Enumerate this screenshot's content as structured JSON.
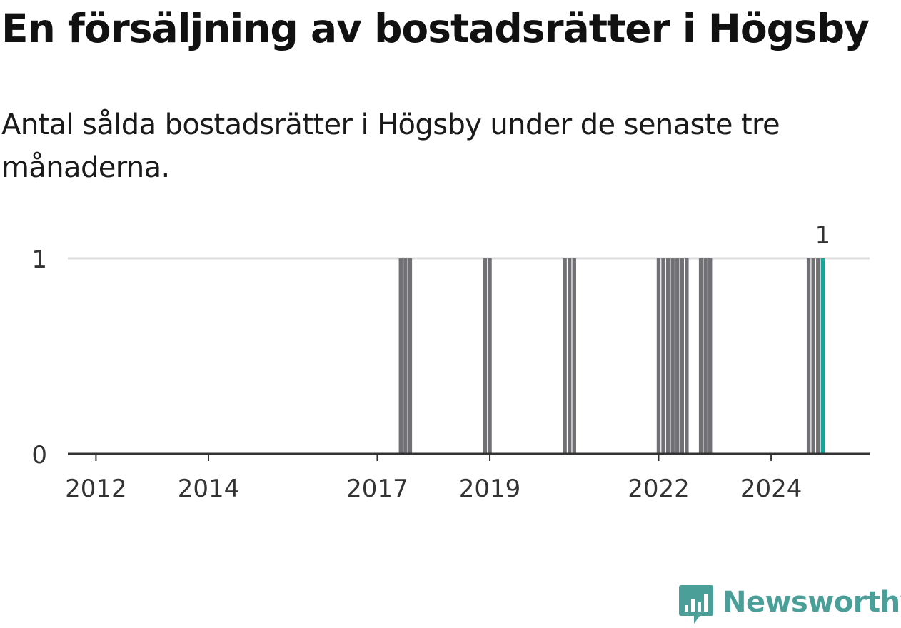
{
  "title": "En försäljning av bostadsrätter i Högsby",
  "subtitle": "Antal sålda bostadsrätter i Högsby under de senaste tre månaderna.",
  "brand": {
    "name": "Newsworthy",
    "color": "#4b9f99",
    "icon": "bar-chart-speech-bubble-icon"
  },
  "colors": {
    "bar": "#707075",
    "highlight": "#1aa396",
    "grid": "#dddddd",
    "axis": "#333333"
  },
  "chart_data": {
    "type": "bar",
    "title": "En försäljning av bostadsrätter i Högsby",
    "subtitle": "Antal sålda bostadsrätter i Högsby under de senaste tre månaderna.",
    "xlabel": "",
    "ylabel": "",
    "ylim": [
      0,
      1
    ],
    "yticks": [
      0,
      1
    ],
    "xlim": [
      "2011-07",
      "2025-10"
    ],
    "xticks": [
      {
        "date": "2012-01",
        "label": "2012"
      },
      {
        "date": "2014-01",
        "label": "2014"
      },
      {
        "date": "2017-01",
        "label": "2017"
      },
      {
        "date": "2019-01",
        "label": "2019"
      },
      {
        "date": "2022-01",
        "label": "2022"
      },
      {
        "date": "2024-01",
        "label": "2024"
      }
    ],
    "grid": true,
    "legend": "none",
    "bars": [
      {
        "date": "2017-06",
        "value": 1
      },
      {
        "date": "2017-07",
        "value": 1
      },
      {
        "date": "2017-08",
        "value": 1
      },
      {
        "date": "2018-12",
        "value": 1
      },
      {
        "date": "2019-01",
        "value": 1
      },
      {
        "date": "2020-05",
        "value": 1
      },
      {
        "date": "2020-06",
        "value": 1
      },
      {
        "date": "2020-07",
        "value": 1
      },
      {
        "date": "2022-01",
        "value": 1
      },
      {
        "date": "2022-02",
        "value": 1
      },
      {
        "date": "2022-03",
        "value": 1
      },
      {
        "date": "2022-04",
        "value": 1
      },
      {
        "date": "2022-05",
        "value": 1
      },
      {
        "date": "2022-06",
        "value": 1
      },
      {
        "date": "2022-07",
        "value": 1
      },
      {
        "date": "2022-10",
        "value": 1
      },
      {
        "date": "2022-11",
        "value": 1
      },
      {
        "date": "2022-12",
        "value": 1
      },
      {
        "date": "2024-09",
        "value": 1
      },
      {
        "date": "2024-10",
        "value": 1
      },
      {
        "date": "2024-11",
        "value": 1
      },
      {
        "date": "2024-12",
        "value": 1,
        "highlight": true,
        "label": "1"
      }
    ]
  }
}
